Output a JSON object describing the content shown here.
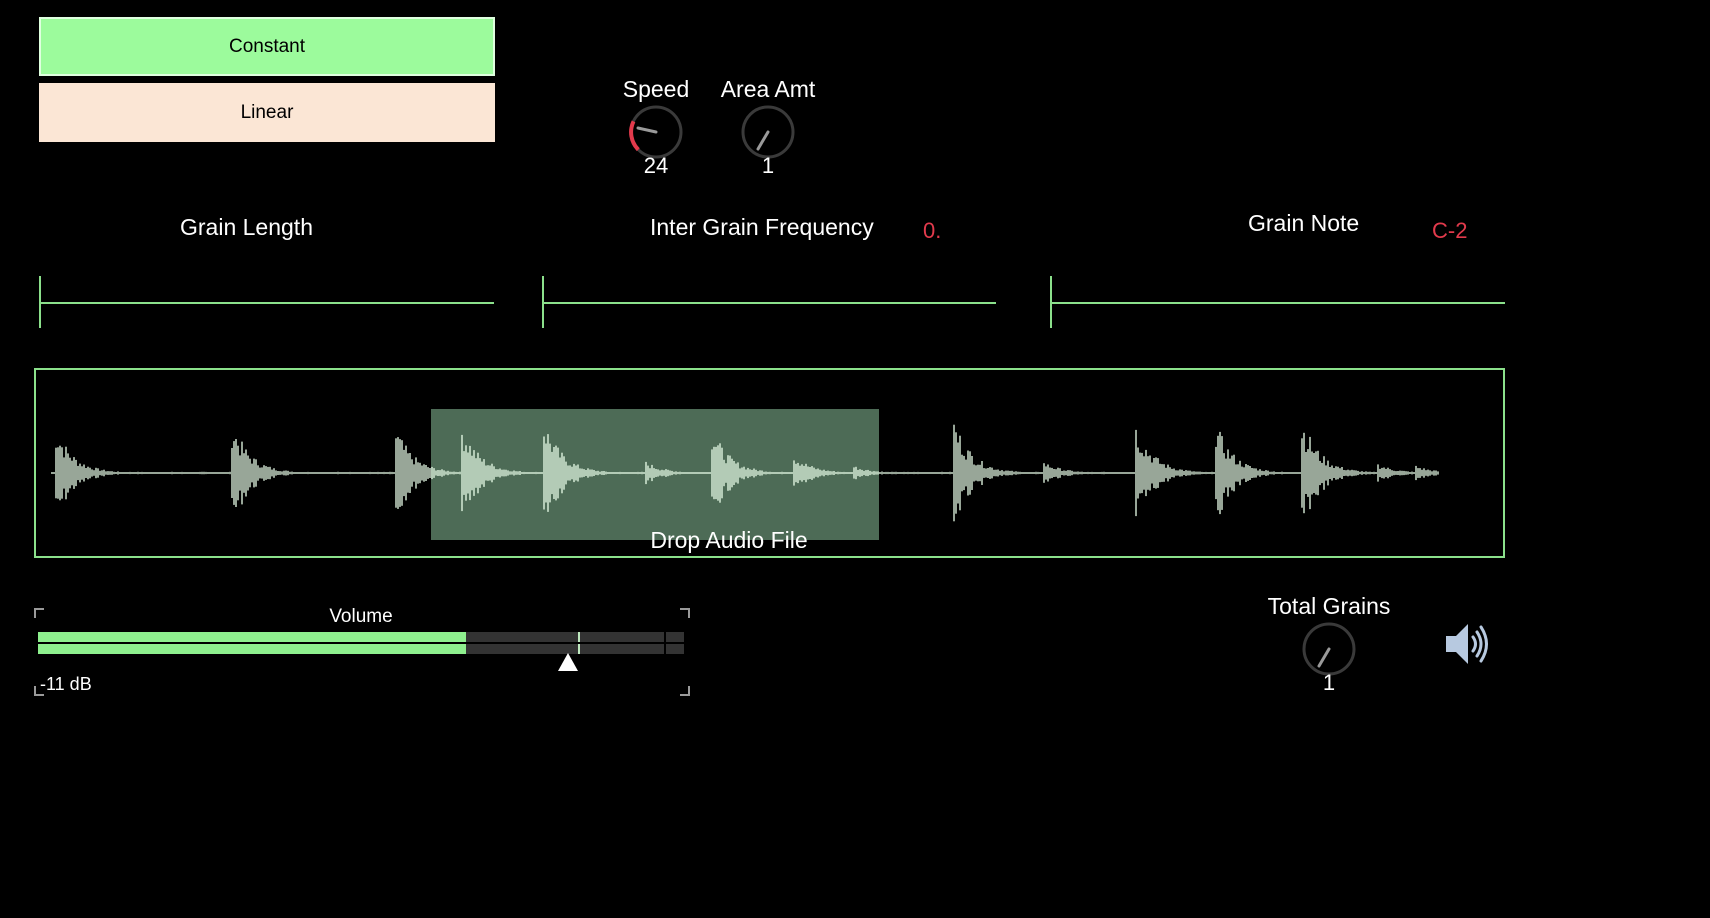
{
  "modes": {
    "constant_label": "Constant",
    "linear_label": "Linear",
    "selected": "Constant"
  },
  "dials": {
    "speed": {
      "label": "Speed",
      "value": "24"
    },
    "area_amt": {
      "label": "Area Amt",
      "value": "1"
    },
    "total_grains": {
      "label": "Total Grains",
      "value": "1"
    }
  },
  "sections": {
    "grain_length": {
      "label": "Grain Length"
    },
    "inter_grain_frequency": {
      "label": "Inter Grain Frequency",
      "value": "0."
    },
    "grain_note": {
      "label": "Grain Note",
      "value": "C-2"
    }
  },
  "waveform": {
    "drop_label": "Drop Audio File"
  },
  "volume": {
    "label": "Volume",
    "db_readout": "-11 dB"
  },
  "colors": {
    "accent_green": "#8be08b",
    "button_active": "#9cfb9c",
    "button_inactive": "#fbe6d5",
    "value_red": "#e23a4c",
    "selection": "#4d6b56"
  },
  "icons": {
    "speaker": "speaker-icon"
  }
}
